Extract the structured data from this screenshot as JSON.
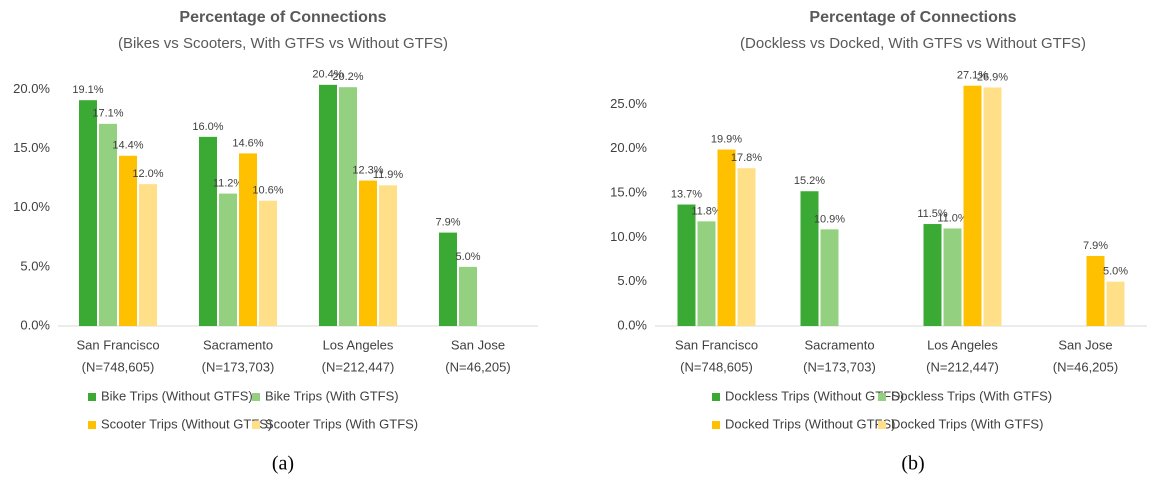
{
  "chart_data": [
    {
      "type": "bar",
      "title": "Percentage of Connections",
      "subtitle": "(Bikes vs Scooters, With GTFS vs Without GTFS)",
      "caption": "(a)",
      "categories": [
        "San Francisco",
        "Sacramento",
        "Los Angeles",
        "San Jose"
      ],
      "category_counts": [
        "(N=748,605)",
        "(N=173,703)",
        "(N=212,447)",
        "(N=46,205)"
      ],
      "ylim": [
        0,
        22.5
      ],
      "yticks": [
        {
          "value": 0,
          "label": "0.0%"
        },
        {
          "value": 5,
          "label": "5.0%"
        },
        {
          "value": 10,
          "label": "10.0%"
        },
        {
          "value": 15,
          "label": "15.0%"
        },
        {
          "value": 20,
          "label": "20.0%"
        }
      ],
      "series": [
        {
          "name": "Bike Trips (Without GTFS)",
          "color": "#3aaa35",
          "values": [
            19.1,
            16.0,
            20.4,
            7.9
          ],
          "value_labels": [
            "19.1%",
            "16.0%",
            "20.4%",
            "7.9%"
          ]
        },
        {
          "name": "Bike Trips (With GTFS)",
          "color": "#93d07f",
          "values": [
            17.1,
            11.2,
            20.2,
            5.0
          ],
          "value_labels": [
            "17.1%",
            "11.2%",
            "20.2%",
            "5.0%"
          ]
        },
        {
          "name": "Scooter Trips (Without GTFS)",
          "color": "#ffc000",
          "values": [
            14.4,
            14.6,
            12.3,
            null
          ],
          "value_labels": [
            "14.4%",
            "14.6%",
            "12.3%",
            null
          ]
        },
        {
          "name": "Scooter Trips (With GTFS)",
          "color": "#ffe089",
          "values": [
            12.0,
            10.6,
            11.9,
            null
          ],
          "value_labels": [
            "12.0%",
            "10.6%",
            "11.9%",
            null
          ]
        }
      ]
    },
    {
      "type": "bar",
      "title": "Percentage of Connections",
      "subtitle": "(Dockless vs Docked, With GTFS vs Without GTFS)",
      "caption": "(b)",
      "categories": [
        "San Francisco",
        "Sacramento",
        "Los Angeles",
        "San Jose"
      ],
      "category_counts": [
        "(N=748,605)",
        "(N=173,703)",
        "(N=212,447)",
        "(N=46,205)"
      ],
      "ylim": [
        0,
        30
      ],
      "yticks": [
        {
          "value": 0,
          "label": "0.0%"
        },
        {
          "value": 5,
          "label": "5.0%"
        },
        {
          "value": 10,
          "label": "10.0%"
        },
        {
          "value": 15,
          "label": "15.0%"
        },
        {
          "value": 20,
          "label": "20.0%"
        },
        {
          "value": 25,
          "label": "25.0%"
        }
      ],
      "series": [
        {
          "name": "Dockless Trips (Without GTFS)",
          "color": "#3aaa35",
          "values": [
            13.7,
            15.2,
            11.5,
            null
          ],
          "value_labels": [
            "13.7%",
            "15.2%",
            "11.5%",
            null
          ]
        },
        {
          "name": "Dockless Trips (With GTFS)",
          "color": "#93d07f",
          "values": [
            11.8,
            10.9,
            11.0,
            null
          ],
          "value_labels": [
            "11.8%",
            "10.9%",
            "11.0%",
            null
          ]
        },
        {
          "name": "Docked Trips (Without GTFS)",
          "color": "#ffc000",
          "values": [
            19.9,
            null,
            27.1,
            7.9
          ],
          "value_labels": [
            "19.9%",
            null,
            "27.1%",
            "7.9%"
          ]
        },
        {
          "name": "Docked Trips (With GTFS)",
          "color": "#ffe089",
          "values": [
            17.8,
            null,
            26.9,
            5.0
          ],
          "value_labels": [
            "17.8%",
            null,
            "26.9%",
            "5.0%"
          ]
        }
      ]
    }
  ]
}
